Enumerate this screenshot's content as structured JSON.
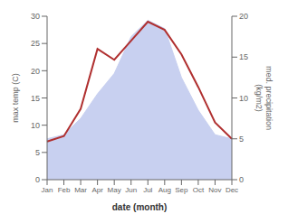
{
  "chart_data": {
    "type": "line",
    "categories": [
      "Jan",
      "Feb",
      "Mar",
      "Apr",
      "May",
      "Jun",
      "Jul",
      "Aug",
      "Sep",
      "Oct",
      "Nov",
      "Dec"
    ],
    "series": [
      {
        "type": "area",
        "color": "#c8d0f0",
        "axis": "y2",
        "values": [
          5.0,
          5.5,
          7.5,
          10.5,
          13.0,
          17.5,
          19.5,
          18.5,
          12.5,
          8.5,
          5.5,
          5.0
        ]
      },
      {
        "type": "line",
        "color": "#b03030",
        "values": [
          7.0,
          8.0,
          13.0,
          24.0,
          22.0,
          25.5,
          29.0,
          27.5,
          23.0,
          17.0,
          10.5,
          7.5
        ]
      }
    ],
    "xlabel": "date (month)",
    "ylabel": "max temp (C)",
    "y2label": "med. precipitation\n(kg/m2)",
    "ylim": [
      0,
      30
    ],
    "yticks": [
      0,
      5,
      10,
      15,
      20,
      25,
      30
    ],
    "y2lim": [
      0,
      20
    ],
    "y2ticks": [
      0,
      5,
      10,
      15,
      20
    ],
    "grid": false
  }
}
